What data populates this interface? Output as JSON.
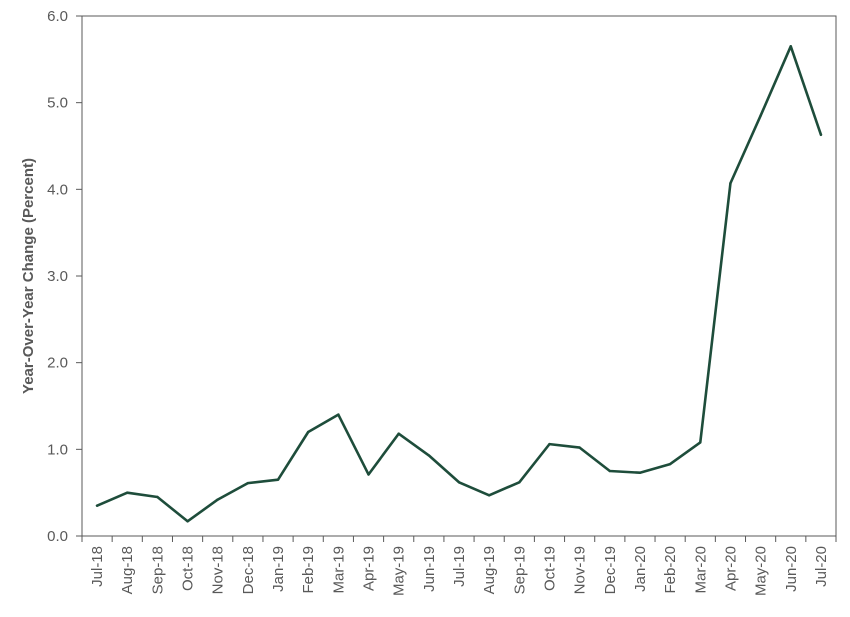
{
  "chart_data": {
    "type": "line",
    "title": "",
    "xlabel": "",
    "ylabel": "Year-Over-Year Change (Percent)",
    "ylim": [
      0,
      6
    ],
    "yticks": [
      "0.0",
      "1.0",
      "2.0",
      "3.0",
      "4.0",
      "5.0",
      "6.0"
    ],
    "grid": false,
    "categories": [
      "Jul-18",
      "Aug-18",
      "Sep-18",
      "Oct-18",
      "Nov-18",
      "Dec-18",
      "Jan-19",
      "Feb-19",
      "Mar-19",
      "Apr-19",
      "May-19",
      "Jun-19",
      "Jul-19",
      "Aug-19",
      "Sep-19",
      "Oct-19",
      "Nov-19",
      "Dec-19",
      "Jan-20",
      "Feb-20",
      "Mar-20",
      "Apr-20",
      "May-20",
      "Jun-20",
      "Jul-20"
    ],
    "series": [
      {
        "values": [
          0.35,
          0.5,
          0.45,
          0.17,
          0.42,
          0.61,
          0.65,
          1.2,
          1.4,
          0.71,
          1.18,
          0.93,
          0.62,
          0.47,
          0.62,
          1.06,
          1.02,
          0.75,
          0.73,
          0.83,
          1.08,
          4.07,
          4.85,
          5.65,
          4.63
        ]
      }
    ],
    "line_color": "#1e4d3b",
    "axis_color": "#595959"
  }
}
